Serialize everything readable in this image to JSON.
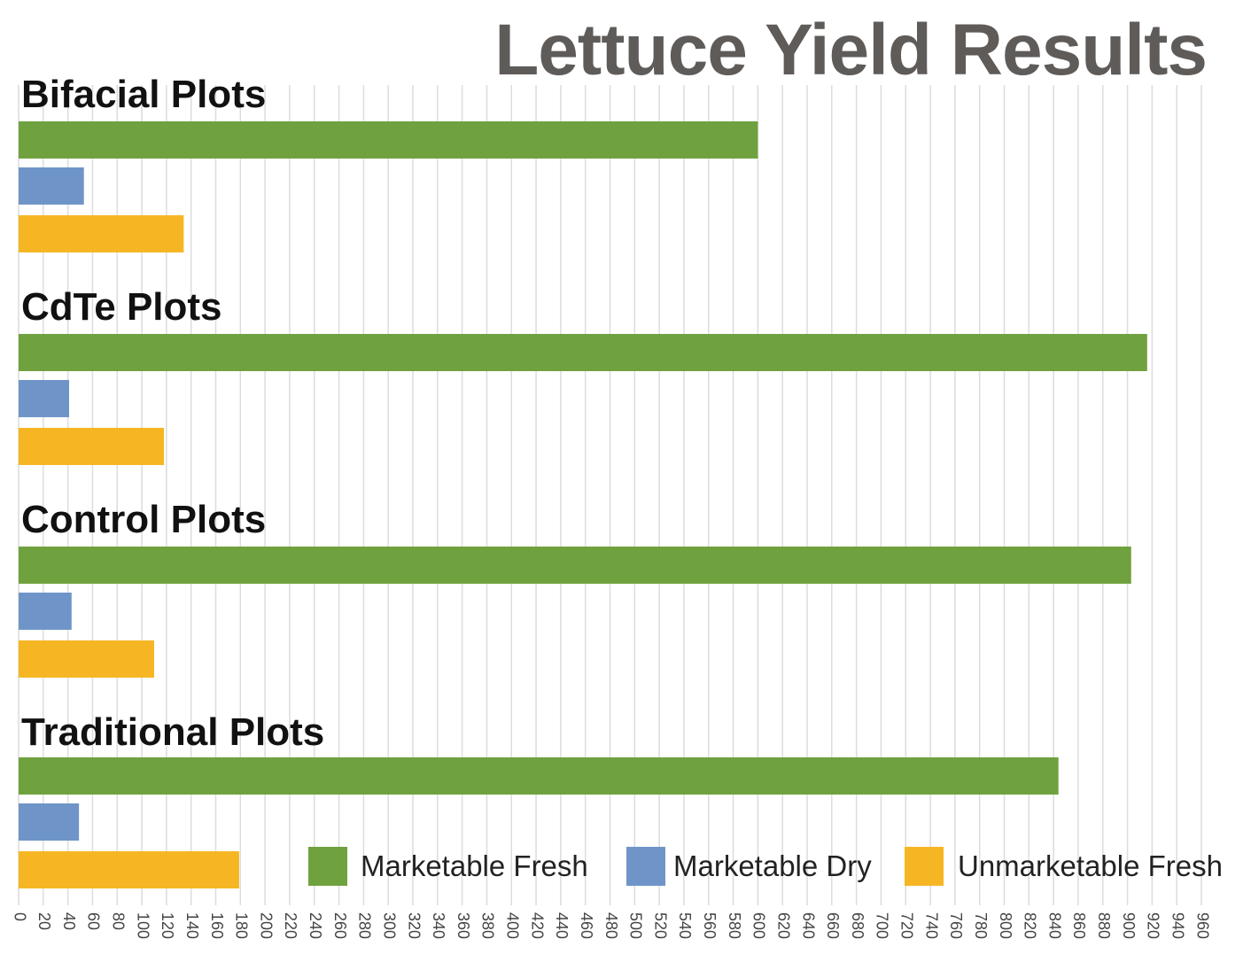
{
  "chart_data": {
    "type": "bar",
    "orientation": "horizontal",
    "title": "Lettuce Yield Results",
    "xlabel": "",
    "ylabel": "",
    "xlim": [
      0,
      960
    ],
    "x_tick_step": 20,
    "x_tick_labels": [
      "0",
      "20",
      "40",
      "60",
      "80",
      "100",
      "120",
      "140",
      "160",
      "180",
      "200",
      "220",
      "240",
      "260",
      "280",
      "300",
      "320",
      "340",
      "360",
      "380",
      "400",
      "420",
      "440",
      "460",
      "480",
      "500",
      "520",
      "540",
      "560",
      "580",
      "600",
      "620",
      "640",
      "660",
      "680",
      "700",
      "720",
      "740",
      "760",
      "780",
      "800",
      "820",
      "840",
      "860",
      "880",
      "900",
      "920",
      "940",
      "960"
    ],
    "grid": true,
    "legend_position": "bottom-right",
    "categories": [
      "Bifacial Plots",
      "CdTe Plots",
      "Control Plots",
      "Traditional Plots"
    ],
    "series": [
      {
        "name": "Marketable Fresh",
        "color": "#70a13f",
        "values": [
          600,
          916,
          903,
          844
        ]
      },
      {
        "name": "Marketable Dry",
        "color": "#6f95c8",
        "values": [
          53,
          41,
          43,
          49
        ]
      },
      {
        "name": "Unmarketable Fresh",
        "color": "#f6b623",
        "values": [
          134,
          118,
          110,
          179
        ]
      }
    ]
  }
}
